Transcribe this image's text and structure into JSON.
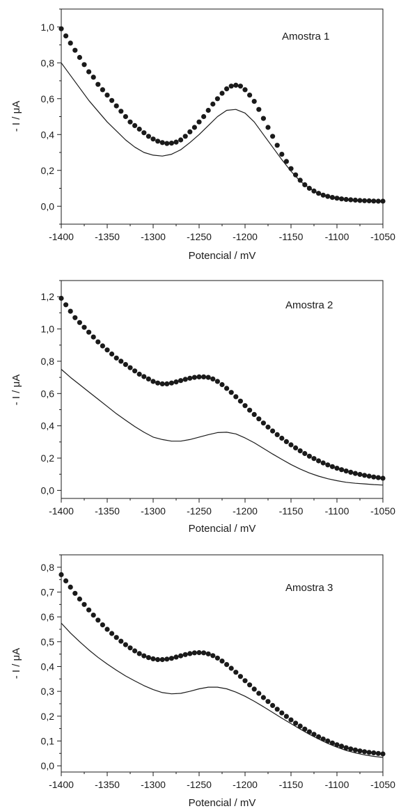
{
  "chart_data": [
    {
      "type": "scatter",
      "annotation": "Amostra 1",
      "xlabel": "Potencial / mV",
      "ylabel": "- I / μA",
      "xlim": [
        -1400,
        -1050
      ],
      "ylim": [
        -0.1,
        1.1
      ],
      "x_ticks": [
        -1400,
        -1350,
        -1300,
        -1250,
        -1200,
        -1150,
        -1100,
        -1050
      ],
      "x_tick_labels": [
        "-1400",
        "-1350",
        "-1300",
        "-1250",
        "-1200",
        "-1150",
        "-1100",
        "-1050"
      ],
      "y_ticks": [
        0.0,
        0.2,
        0.4,
        0.6,
        0.8,
        1.0
      ],
      "y_tick_labels": [
        "0,0",
        "0,2",
        "0,4",
        "0,6",
        "0,8",
        "1,0"
      ],
      "grid": false,
      "series": [
        {
          "style": "markers",
          "color": "#1a1a1a",
          "x": [
            -1400,
            -1395,
            -1390,
            -1385,
            -1380,
            -1375,
            -1370,
            -1365,
            -1360,
            -1355,
            -1350,
            -1345,
            -1340,
            -1335,
            -1330,
            -1325,
            -1320,
            -1315,
            -1310,
            -1305,
            -1300,
            -1295,
            -1290,
            -1285,
            -1280,
            -1275,
            -1270,
            -1265,
            -1260,
            -1255,
            -1250,
            -1245,
            -1240,
            -1235,
            -1230,
            -1225,
            -1220,
            -1215,
            -1210,
            -1205,
            -1200,
            -1195,
            -1190,
            -1185,
            -1180,
            -1175,
            -1170,
            -1165,
            -1160,
            -1155,
            -1150,
            -1145,
            -1140,
            -1135,
            -1130,
            -1125,
            -1120,
            -1115,
            -1110,
            -1105,
            -1100,
            -1095,
            -1090,
            -1085,
            -1080,
            -1075,
            -1070,
            -1065,
            -1060,
            -1055,
            -1050
          ],
          "y": [
            0.99,
            0.95,
            0.91,
            0.87,
            0.83,
            0.79,
            0.75,
            0.72,
            0.68,
            0.65,
            0.62,
            0.59,
            0.56,
            0.53,
            0.5,
            0.47,
            0.45,
            0.43,
            0.41,
            0.39,
            0.375,
            0.363,
            0.355,
            0.35,
            0.352,
            0.358,
            0.37,
            0.39,
            0.415,
            0.44,
            0.47,
            0.5,
            0.535,
            0.57,
            0.6,
            0.63,
            0.655,
            0.67,
            0.675,
            0.67,
            0.65,
            0.62,
            0.585,
            0.54,
            0.49,
            0.44,
            0.39,
            0.34,
            0.29,
            0.25,
            0.21,
            0.175,
            0.145,
            0.12,
            0.1,
            0.085,
            0.072,
            0.062,
            0.055,
            0.049,
            0.045,
            0.041,
            0.038,
            0.036,
            0.034,
            0.032,
            0.031,
            0.03,
            0.029,
            0.028,
            0.028
          ]
        },
        {
          "style": "line",
          "color": "#1a1a1a",
          "x": [
            -1400,
            -1390,
            -1380,
            -1370,
            -1360,
            -1350,
            -1340,
            -1330,
            -1320,
            -1310,
            -1300,
            -1290,
            -1280,
            -1270,
            -1260,
            -1250,
            -1240,
            -1230,
            -1220,
            -1210,
            -1200,
            -1190,
            -1180,
            -1170,
            -1160,
            -1150,
            -1140,
            -1130,
            -1120,
            -1110,
            -1100,
            -1090,
            -1080,
            -1070,
            -1060,
            -1050
          ],
          "y": [
            0.8,
            0.73,
            0.66,
            0.59,
            0.53,
            0.47,
            0.42,
            0.37,
            0.33,
            0.3,
            0.285,
            0.28,
            0.29,
            0.315,
            0.355,
            0.4,
            0.45,
            0.5,
            0.535,
            0.54,
            0.52,
            0.47,
            0.4,
            0.33,
            0.26,
            0.195,
            0.14,
            0.1,
            0.07,
            0.052,
            0.042,
            0.036,
            0.032,
            0.029,
            0.027,
            0.025
          ]
        }
      ]
    },
    {
      "type": "scatter",
      "annotation": "Amostra 2",
      "xlabel": "Potencial / mV",
      "ylabel": "- I / μA",
      "xlim": [
        -1400,
        -1050
      ],
      "ylim": [
        -0.05,
        1.3
      ],
      "x_ticks": [
        -1400,
        -1350,
        -1300,
        -1250,
        -1200,
        -1150,
        -1100,
        -1050
      ],
      "x_tick_labels": [
        "-1400",
        "-1350",
        "-1300",
        "-1250",
        "-1200",
        "-1150",
        "-1100",
        "-1050"
      ],
      "y_ticks": [
        0.0,
        0.2,
        0.4,
        0.6,
        0.8,
        1.0,
        1.2
      ],
      "y_tick_labels": [
        "0,0",
        "0,2",
        "0,4",
        "0,6",
        "0,8",
        "1,0",
        "1,2"
      ],
      "grid": false,
      "series": [
        {
          "style": "markers",
          "color": "#1a1a1a",
          "x": [
            -1400,
            -1395,
            -1390,
            -1385,
            -1380,
            -1375,
            -1370,
            -1365,
            -1360,
            -1355,
            -1350,
            -1345,
            -1340,
            -1335,
            -1330,
            -1325,
            -1320,
            -1315,
            -1310,
            -1305,
            -1300,
            -1295,
            -1290,
            -1285,
            -1280,
            -1275,
            -1270,
            -1265,
            -1260,
            -1255,
            -1250,
            -1245,
            -1240,
            -1235,
            -1230,
            -1225,
            -1220,
            -1215,
            -1210,
            -1205,
            -1200,
            -1195,
            -1190,
            -1185,
            -1180,
            -1175,
            -1170,
            -1165,
            -1160,
            -1155,
            -1150,
            -1145,
            -1140,
            -1135,
            -1130,
            -1125,
            -1120,
            -1115,
            -1110,
            -1105,
            -1100,
            -1095,
            -1090,
            -1085,
            -1080,
            -1075,
            -1070,
            -1065,
            -1060,
            -1055,
            -1050
          ],
          "y": [
            1.19,
            1.15,
            1.11,
            1.07,
            1.04,
            1.01,
            0.98,
            0.95,
            0.92,
            0.895,
            0.87,
            0.845,
            0.82,
            0.8,
            0.78,
            0.76,
            0.74,
            0.72,
            0.705,
            0.69,
            0.675,
            0.665,
            0.66,
            0.66,
            0.665,
            0.672,
            0.68,
            0.688,
            0.695,
            0.7,
            0.703,
            0.703,
            0.7,
            0.69,
            0.675,
            0.655,
            0.632,
            0.607,
            0.58,
            0.553,
            0.525,
            0.497,
            0.47,
            0.443,
            0.417,
            0.392,
            0.368,
            0.345,
            0.323,
            0.302,
            0.282,
            0.263,
            0.245,
            0.228,
            0.212,
            0.197,
            0.183,
            0.17,
            0.158,
            0.147,
            0.137,
            0.128,
            0.12,
            0.112,
            0.105,
            0.099,
            0.093,
            0.088,
            0.083,
            0.079,
            0.075
          ]
        },
        {
          "style": "line",
          "color": "#1a1a1a",
          "x": [
            -1400,
            -1390,
            -1380,
            -1370,
            -1360,
            -1350,
            -1340,
            -1330,
            -1320,
            -1310,
            -1300,
            -1290,
            -1280,
            -1270,
            -1260,
            -1250,
            -1240,
            -1230,
            -1220,
            -1210,
            -1200,
            -1190,
            -1180,
            -1170,
            -1160,
            -1150,
            -1140,
            -1130,
            -1120,
            -1110,
            -1100,
            -1090,
            -1080,
            -1070,
            -1060,
            -1050
          ],
          "y": [
            0.75,
            0.7,
            0.655,
            0.61,
            0.565,
            0.52,
            0.475,
            0.435,
            0.395,
            0.36,
            0.33,
            0.315,
            0.305,
            0.305,
            0.315,
            0.33,
            0.345,
            0.358,
            0.36,
            0.35,
            0.325,
            0.295,
            0.26,
            0.225,
            0.192,
            0.16,
            0.132,
            0.108,
            0.088,
            0.072,
            0.06,
            0.05,
            0.044,
            0.04,
            0.036,
            0.033
          ]
        }
      ]
    },
    {
      "type": "scatter",
      "annotation": "Amostra 3",
      "xlabel": "Potencial / mV",
      "ylabel": "- I / μA",
      "xlim": [
        -1400,
        -1050
      ],
      "ylim": [
        -0.025,
        0.85
      ],
      "x_ticks": [
        -1400,
        -1350,
        -1300,
        -1250,
        -1200,
        -1150,
        -1100,
        -1050
      ],
      "x_tick_labels": [
        "-1400",
        "-1350",
        "-1300",
        "-1250",
        "-1200",
        "-1150",
        "-1100",
        "-1050"
      ],
      "y_ticks": [
        0.0,
        0.1,
        0.2,
        0.3,
        0.4,
        0.5,
        0.6,
        0.7,
        0.8
      ],
      "y_tick_labels": [
        "0,0",
        "0,1",
        "0,2",
        "0,3",
        "0,4",
        "0,5",
        "0,6",
        "0,7",
        "0,8"
      ],
      "grid": false,
      "series": [
        {
          "style": "markers",
          "color": "#1a1a1a",
          "x": [
            -1400,
            -1395,
            -1390,
            -1385,
            -1380,
            -1375,
            -1370,
            -1365,
            -1360,
            -1355,
            -1350,
            -1345,
            -1340,
            -1335,
            -1330,
            -1325,
            -1320,
            -1315,
            -1310,
            -1305,
            -1300,
            -1295,
            -1290,
            -1285,
            -1280,
            -1275,
            -1270,
            -1265,
            -1260,
            -1255,
            -1250,
            -1245,
            -1240,
            -1235,
            -1230,
            -1225,
            -1220,
            -1215,
            -1210,
            -1205,
            -1200,
            -1195,
            -1190,
            -1185,
            -1180,
            -1175,
            -1170,
            -1165,
            -1160,
            -1155,
            -1150,
            -1145,
            -1140,
            -1135,
            -1130,
            -1125,
            -1120,
            -1115,
            -1110,
            -1105,
            -1100,
            -1095,
            -1090,
            -1085,
            -1080,
            -1075,
            -1070,
            -1065,
            -1060,
            -1055,
            -1050
          ],
          "y": [
            0.77,
            0.745,
            0.72,
            0.695,
            0.672,
            0.65,
            0.628,
            0.607,
            0.587,
            0.568,
            0.55,
            0.533,
            0.517,
            0.502,
            0.488,
            0.475,
            0.463,
            0.452,
            0.443,
            0.436,
            0.431,
            0.428,
            0.428,
            0.43,
            0.433,
            0.438,
            0.443,
            0.448,
            0.452,
            0.455,
            0.456,
            0.455,
            0.451,
            0.444,
            0.434,
            0.422,
            0.408,
            0.393,
            0.377,
            0.36,
            0.343,
            0.326,
            0.309,
            0.292,
            0.275,
            0.259,
            0.243,
            0.228,
            0.213,
            0.199,
            0.185,
            0.172,
            0.16,
            0.148,
            0.137,
            0.127,
            0.117,
            0.108,
            0.1,
            0.092,
            0.085,
            0.079,
            0.073,
            0.068,
            0.064,
            0.06,
            0.057,
            0.054,
            0.052,
            0.05,
            0.048
          ]
        },
        {
          "style": "line",
          "color": "#1a1a1a",
          "x": [
            -1400,
            -1390,
            -1380,
            -1370,
            -1360,
            -1350,
            -1340,
            -1330,
            -1320,
            -1310,
            -1300,
            -1290,
            -1280,
            -1270,
            -1260,
            -1250,
            -1240,
            -1230,
            -1220,
            -1210,
            -1200,
            -1190,
            -1180,
            -1170,
            -1160,
            -1150,
            -1140,
            -1130,
            -1120,
            -1110,
            -1100,
            -1090,
            -1080,
            -1070,
            -1060,
            -1050
          ],
          "y": [
            0.575,
            0.535,
            0.5,
            0.467,
            0.437,
            0.41,
            0.385,
            0.362,
            0.342,
            0.323,
            0.307,
            0.295,
            0.29,
            0.292,
            0.3,
            0.31,
            0.317,
            0.317,
            0.31,
            0.297,
            0.28,
            0.26,
            0.238,
            0.215,
            0.192,
            0.17,
            0.148,
            0.127,
            0.108,
            0.09,
            0.075,
            0.062,
            0.052,
            0.044,
            0.038,
            0.034
          ]
        }
      ]
    }
  ]
}
